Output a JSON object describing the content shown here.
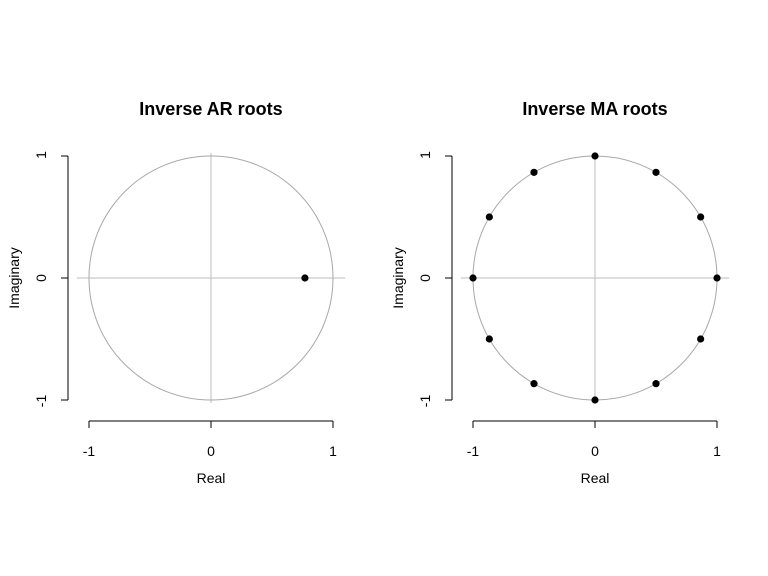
{
  "chart_data": [
    {
      "type": "scatter",
      "title": "Inverse AR roots",
      "xlabel": "Real",
      "ylabel": "Imaginary",
      "xlim": [
        -1,
        1
      ],
      "ylim": [
        -1,
        1
      ],
      "x_ticks": [
        "-1",
        "0",
        "1"
      ],
      "y_ticks": [
        "-1",
        "0",
        "1"
      ],
      "unit_circle": true,
      "reference_lines": [
        0,
        0
      ],
      "points": [
        {
          "x": 0.77,
          "y": 0
        }
      ]
    },
    {
      "type": "scatter",
      "title": "Inverse MA roots",
      "xlabel": "Real",
      "ylabel": "Imaginary",
      "xlim": [
        -1,
        1
      ],
      "ylim": [
        -1,
        1
      ],
      "x_ticks": [
        "-1",
        "0",
        "1"
      ],
      "y_ticks": [
        "-1",
        "0",
        "1"
      ],
      "unit_circle": true,
      "reference_lines": [
        0,
        0
      ],
      "points": [
        {
          "x": 1,
          "y": 0
        },
        {
          "x": 0.866,
          "y": 0.5
        },
        {
          "x": 0.5,
          "y": 0.866
        },
        {
          "x": 0,
          "y": 1
        },
        {
          "x": -0.5,
          "y": 0.866
        },
        {
          "x": -0.866,
          "y": 0.5
        },
        {
          "x": -1,
          "y": 0
        },
        {
          "x": -0.866,
          "y": -0.5
        },
        {
          "x": -0.5,
          "y": -0.866
        },
        {
          "x": 0,
          "y": -1
        },
        {
          "x": 0.5,
          "y": -0.866
        },
        {
          "x": 0.866,
          "y": -0.5
        }
      ]
    }
  ]
}
